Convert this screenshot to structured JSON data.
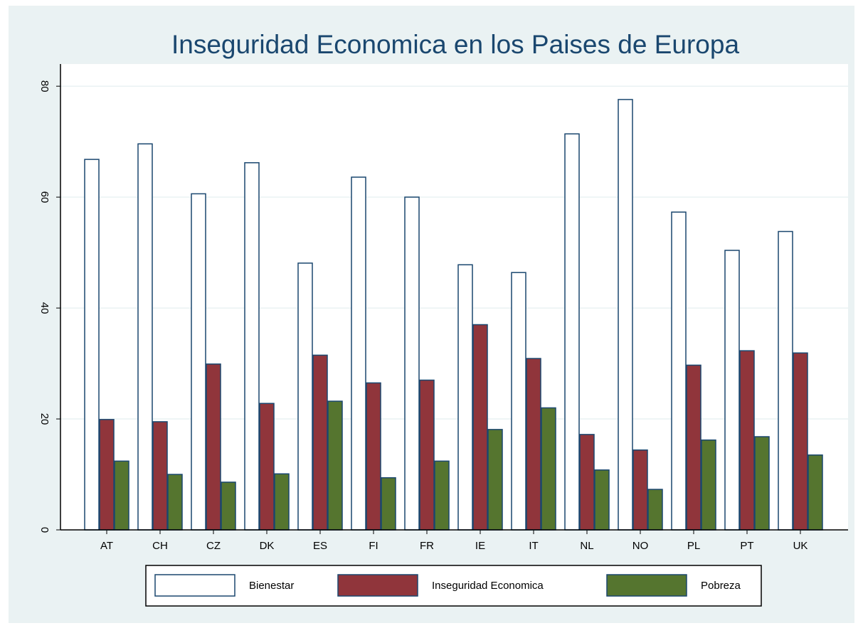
{
  "chart_data": {
    "type": "bar",
    "title": "Inseguridad Economica en los Paises de Europa",
    "categories": [
      "AT",
      "CH",
      "CZ",
      "DK",
      "ES",
      "FI",
      "FR",
      "IE",
      "IT",
      "NL",
      "NO",
      "PL",
      "PT",
      "UK"
    ],
    "series": [
      {
        "name": "Bienestar",
        "color": "#ffffff",
        "values": [
          66.8,
          69.6,
          60.6,
          66.2,
          48.1,
          63.6,
          60,
          47.8,
          46.4,
          71.4,
          77.6,
          57.3,
          50.4,
          53.8
        ]
      },
      {
        "name": "Inseguridad Economica",
        "color": "#90353b",
        "values": [
          19.9,
          19.5,
          29.9,
          22.8,
          31.5,
          26.5,
          27,
          37,
          30.9,
          17.2,
          14.4,
          29.7,
          32.3,
          31.9
        ]
      },
      {
        "name": "Pobreza",
        "color": "#55752f",
        "values": [
          12.4,
          10,
          8.6,
          10.1,
          23.2,
          9.4,
          12.4,
          18.1,
          22,
          10.8,
          7.3,
          16.2,
          16.8,
          13.5
        ]
      }
    ],
    "outline": "#1a476f",
    "ylim": [
      0,
      84
    ],
    "yticks": [
      0,
      20,
      40,
      60,
      80
    ],
    "grid": true
  }
}
